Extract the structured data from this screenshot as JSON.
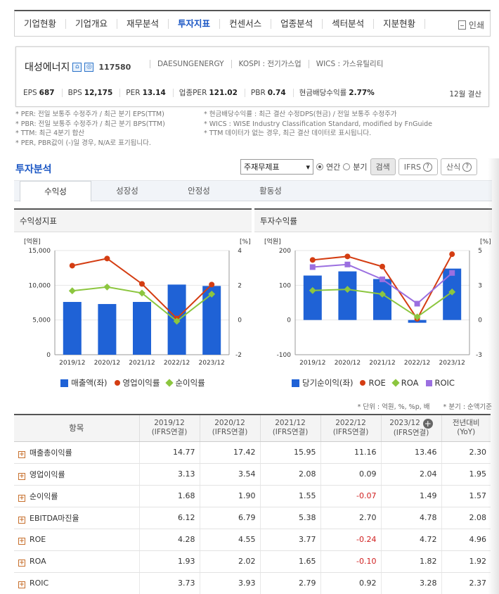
{
  "nav": {
    "items": [
      "기업현황",
      "기업개요",
      "재무분석",
      "투자지표",
      "컨센서스",
      "업종분석",
      "섹터분석",
      "지분현황"
    ],
    "active_index": 3,
    "print_label": "인쇄"
  },
  "company": {
    "name": "대성에너지",
    "code": "117580",
    "eng_name": "DAESUNGENERGY",
    "market": "KOSPI : 전기가스업",
    "wics": "WICS : 가스유틸리티",
    "stats": [
      {
        "label": "EPS",
        "value": "687"
      },
      {
        "label": "BPS",
        "value": "12,175"
      },
      {
        "label": "PER",
        "value": "13.14"
      },
      {
        "label": "업종PER",
        "value": "121.02"
      },
      {
        "label": "PBR",
        "value": "0.74"
      },
      {
        "label": "현금배당수익률",
        "value": "2.77%"
      }
    ],
    "settlement": "12월 결산"
  },
  "notes": {
    "left": [
      "* PER: 전일 보통주 수정주가 / 최근 분기 EPS(TTM)",
      "* PBR: 전일 보통주 수정주가 / 최근 분기 BPS(TTM)",
      "* TTM: 최근 4분기 합산",
      "* PER, PBR값이 (-)일 경우, N/A로 표기됩니다."
    ],
    "right": [
      "* 현금배당수익률 : 최근 결산 수정DPS(현금) / 전일 보통주 수정주가",
      "* WICS : WISE Industry Classification Standard, modified by FnGuide",
      "* TTM 데이터가 없는 경우, 최근 결산 데이터로 표시됩니다."
    ]
  },
  "section": {
    "title": "투자분석",
    "select_value": "주재무제표",
    "radio_annual": "연간",
    "radio_quarter": "분기",
    "search_button": "검색",
    "ifrs_button": "IFRS",
    "formula_button": "산식"
  },
  "tabs": [
    "수익성",
    "성장성",
    "안정성",
    "활동성"
  ],
  "charts_titles": {
    "left": "수익성지표",
    "right": "투자수익률"
  },
  "chart_data": [
    {
      "type": "bar",
      "title": "수익성지표",
      "categories": [
        "2019/12",
        "2020/12",
        "2021/12",
        "2022/12",
        "2023/12"
      ],
      "ylabel": "[억원]",
      "y2label": "[%]",
      "ylim": [
        0,
        15000
      ],
      "y2lim": [
        -2,
        4
      ],
      "yticks": [
        "15,000",
        "10,000",
        "5,000",
        "0"
      ],
      "y2ticks": [
        "4",
        "2",
        "0",
        "-2"
      ],
      "series": [
        {
          "name": "매출액(좌)",
          "kind": "bar",
          "axis": "left",
          "color": "#1f62d6",
          "values": [
            7600,
            7300,
            7600,
            10100,
            9900
          ]
        },
        {
          "name": "영업이익률",
          "kind": "line",
          "axis": "right",
          "color": "#d43d12",
          "values": [
            3.13,
            3.54,
            2.08,
            0.09,
            2.04
          ]
        },
        {
          "name": "순이익률",
          "kind": "line",
          "axis": "right",
          "color": "#8cc63f",
          "values": [
            1.68,
            1.9,
            1.55,
            -0.07,
            1.49
          ]
        }
      ]
    },
    {
      "type": "bar",
      "title": "투자수익률",
      "categories": [
        "2019/12",
        "2020/12",
        "2021/12",
        "2022/12",
        "2023/12"
      ],
      "ylabel": "[억원]",
      "y2label": "[%]",
      "ylim": [
        -100,
        200
      ],
      "y2lim": [
        -3,
        5
      ],
      "yticks": [
        "200",
        "100",
        "0",
        "-100"
      ],
      "y2ticks": [
        "5",
        "3",
        "0",
        "-3"
      ],
      "series": [
        {
          "name": "당기순이익(좌)",
          "kind": "bar",
          "axis": "left",
          "color": "#1f62d6",
          "values": [
            128,
            140,
            118,
            -8,
            148
          ]
        },
        {
          "name": "ROE",
          "kind": "line",
          "axis": "right",
          "color": "#d43d12",
          "values": [
            4.28,
            4.55,
            3.77,
            -0.24,
            4.72
          ]
        },
        {
          "name": "ROA",
          "kind": "line",
          "axis": "right",
          "color": "#8cc63f",
          "values": [
            1.93,
            2.02,
            1.65,
            -0.1,
            1.82
          ]
        },
        {
          "name": "ROIC",
          "kind": "line",
          "axis": "right",
          "color": "#9b6fe0",
          "marker": "square",
          "values": [
            3.73,
            3.93,
            2.79,
            0.92,
            3.28
          ]
        }
      ]
    }
  ],
  "unit_note": "* 단위 : 억원, %, %p, 배",
  "period_note": "* 분기 : 순액기준",
  "table": {
    "headers": [
      {
        "line1": "항목",
        "line2": ""
      },
      {
        "line1": "2019/12",
        "line2": "(IFRS연결)"
      },
      {
        "line1": "2020/12",
        "line2": "(IFRS연결)"
      },
      {
        "line1": "2021/12",
        "line2": "(IFRS연결)"
      },
      {
        "line1": "2022/12",
        "line2": "(IFRS연결)"
      },
      {
        "line1": "2023/12",
        "line2": "(IFRS연결)"
      },
      {
        "line1": "전년대비",
        "line2": "(YoY)"
      }
    ],
    "rows": [
      {
        "label": "매출총이익률",
        "values": [
          "14.77",
          "17.42",
          "15.95",
          "11.16",
          "13.46",
          "2.30"
        ]
      },
      {
        "label": "영업이익률",
        "values": [
          "3.13",
          "3.54",
          "2.08",
          "0.09",
          "2.04",
          "1.95"
        ]
      },
      {
        "label": "순이익률",
        "values": [
          "1.68",
          "1.90",
          "1.55",
          "-0.07",
          "1.49",
          "1.57"
        ]
      },
      {
        "label": "EBITDA마진율",
        "values": [
          "6.12",
          "6.79",
          "5.38",
          "2.70",
          "4.78",
          "2.08"
        ]
      },
      {
        "label": "ROE",
        "values": [
          "4.28",
          "4.55",
          "3.77",
          "-0.24",
          "4.72",
          "4.96"
        ]
      },
      {
        "label": "ROA",
        "values": [
          "1.93",
          "2.02",
          "1.65",
          "-0.10",
          "1.82",
          "1.92"
        ]
      },
      {
        "label": "ROIC",
        "values": [
          "3.73",
          "3.93",
          "2.79",
          "0.92",
          "3.28",
          "2.37"
        ]
      }
    ]
  }
}
